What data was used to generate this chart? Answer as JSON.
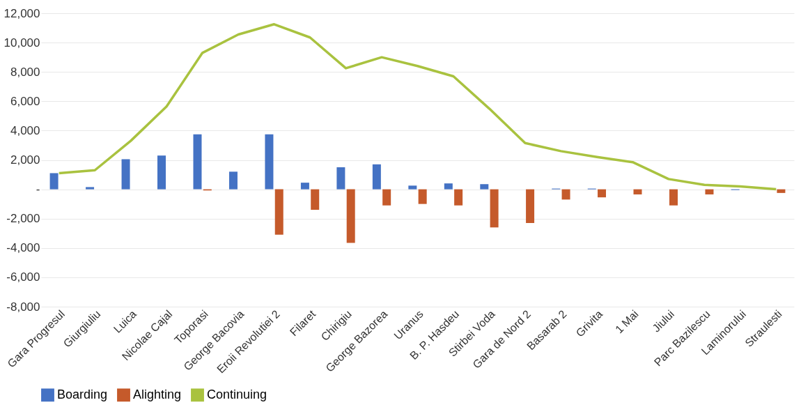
{
  "chart_data": {
    "type": "bar",
    "categories": [
      "Gara Progresul",
      "Giurgiuliu",
      "Luica",
      "Nicolae Cajal",
      "Toporasi",
      "George Bacovia",
      "Eroii Revolutiei 2",
      "Filaret",
      "Chirigiu",
      "George Bazorea",
      "Uranus",
      "B. P. Hasdeu",
      "Stirbei Voda",
      "Gara de Nord 2",
      "Basarab 2",
      "Grivita",
      "1 Mai",
      "Jiului",
      "Parc Bazilescu",
      "Laminorului",
      "Straulesti"
    ],
    "series": [
      {
        "name": "Boarding",
        "color": "#4472c4",
        "values": [
          1100,
          150,
          2050,
          2300,
          3750,
          1200,
          3750,
          450,
          1500,
          1700,
          250,
          400,
          350,
          0,
          50,
          50,
          0,
          0,
          0,
          -50,
          0
        ]
      },
      {
        "name": "Alighting",
        "color": "#c55a2b",
        "values": [
          0,
          0,
          0,
          0,
          -80,
          0,
          -3100,
          -1400,
          -3650,
          -1100,
          -1000,
          -1100,
          -2600,
          -2300,
          -700,
          -550,
          -350,
          -1100,
          -350,
          0,
          -250
        ]
      },
      {
        "name": "Continuing",
        "color": "#a9c23f",
        "type": "line",
        "values": [
          1100,
          1300,
          3300,
          5650,
          9300,
          10550,
          11250,
          10350,
          8250,
          9000,
          8400,
          7700,
          5500,
          3150,
          2600,
          2200,
          1850,
          700,
          300,
          200,
          0
        ]
      }
    ],
    "ylim": [
      -8000,
      12000
    ],
    "yticks": [
      {
        "value": -8000,
        "label": "-8,000"
      },
      {
        "value": -6000,
        "label": "-6,000"
      },
      {
        "value": -4000,
        "label": "-4,000"
      },
      {
        "value": -2000,
        "label": "-2,000"
      },
      {
        "value": 0,
        "label": "-"
      },
      {
        "value": 2000,
        "label": "2,000"
      },
      {
        "value": 4000,
        "label": "4,000"
      },
      {
        "value": 6000,
        "label": "6,000"
      },
      {
        "value": 8000,
        "label": "8,000"
      },
      {
        "value": 10000,
        "label": "10,000"
      },
      {
        "value": 12000,
        "label": "12,000"
      }
    ],
    "grid": "y",
    "legend": "bottom",
    "marker": "none",
    "line_style": "solid"
  }
}
